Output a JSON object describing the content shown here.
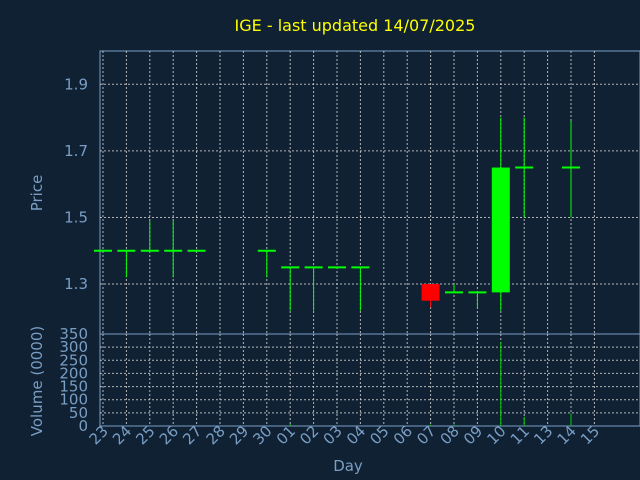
{
  "chart_data": [
    {
      "type": "candlestick",
      "title": "IGE - last updated 14/07/2025",
      "xlabel": "Day",
      "ylabel": "Price",
      "ylim": [
        1.15,
        2.0
      ],
      "yticks": [
        "1.3",
        "1.5",
        "1.7",
        "1.9"
      ],
      "categories": [
        "23",
        "24",
        "25",
        "26",
        "27",
        "28",
        "29",
        "30",
        "01",
        "02",
        "03",
        "04",
        "05",
        "06",
        "07",
        "08",
        "09",
        "10",
        "11",
        "13",
        "14",
        "15"
      ],
      "grid": true,
      "up_color": "#00ff00",
      "down_color": "#ff0000",
      "candles": [
        {
          "day": "23",
          "open": 1.4,
          "high": 1.4,
          "low": 1.4,
          "close": 1.4
        },
        {
          "day": "24",
          "open": 1.4,
          "high": 1.4,
          "low": 1.32,
          "close": 1.4
        },
        {
          "day": "25",
          "open": 1.4,
          "high": 1.49,
          "low": 1.4,
          "close": 1.4
        },
        {
          "day": "26",
          "open": 1.4,
          "high": 1.49,
          "low": 1.32,
          "close": 1.4
        },
        {
          "day": "27",
          "open": 1.4,
          "high": 1.4,
          "low": 1.4,
          "close": 1.4
        },
        {
          "day": "30",
          "open": 1.4,
          "high": 1.4,
          "low": 1.32,
          "close": 1.4
        },
        {
          "day": "01",
          "open": 1.35,
          "high": 1.35,
          "low": 1.22,
          "close": 1.35
        },
        {
          "day": "02",
          "open": 1.35,
          "high": 1.35,
          "low": 1.22,
          "close": 1.35
        },
        {
          "day": "03",
          "open": 1.35,
          "high": 1.35,
          "low": 1.35,
          "close": 1.35
        },
        {
          "day": "04",
          "open": 1.35,
          "high": 1.35,
          "low": 1.22,
          "close": 1.35
        },
        {
          "day": "07",
          "open": 1.3,
          "high": 1.3,
          "low": 1.23,
          "close": 1.25
        },
        {
          "day": "08",
          "open": 1.275,
          "high": 1.3,
          "low": 1.275,
          "close": 1.275
        },
        {
          "day": "09",
          "open": 1.275,
          "high": 1.275,
          "low": 1.23,
          "close": 1.275
        },
        {
          "day": "10",
          "open": 1.275,
          "high": 1.8,
          "low": 1.22,
          "close": 1.65
        },
        {
          "day": "11",
          "open": 1.65,
          "high": 1.8,
          "low": 1.5,
          "close": 1.65
        },
        {
          "day": "14",
          "open": 1.65,
          "high": 1.79,
          "low": 1.5,
          "close": 1.65
        }
      ]
    },
    {
      "type": "bar",
      "xlabel": "Day",
      "ylabel": "Volume (0000)",
      "ylim": [
        0,
        350
      ],
      "yticks": [
        "0",
        "50",
        "100",
        "150",
        "200",
        "250",
        "300",
        "350"
      ],
      "bar_color": "#00cc00",
      "bars": [
        {
          "day": "01",
          "value": 8
        },
        {
          "day": "07",
          "value": 5
        },
        {
          "day": "08",
          "value": 6
        },
        {
          "day": "10",
          "value": 320
        },
        {
          "day": "11",
          "value": 35
        },
        {
          "day": "14",
          "value": 48
        }
      ]
    }
  ]
}
